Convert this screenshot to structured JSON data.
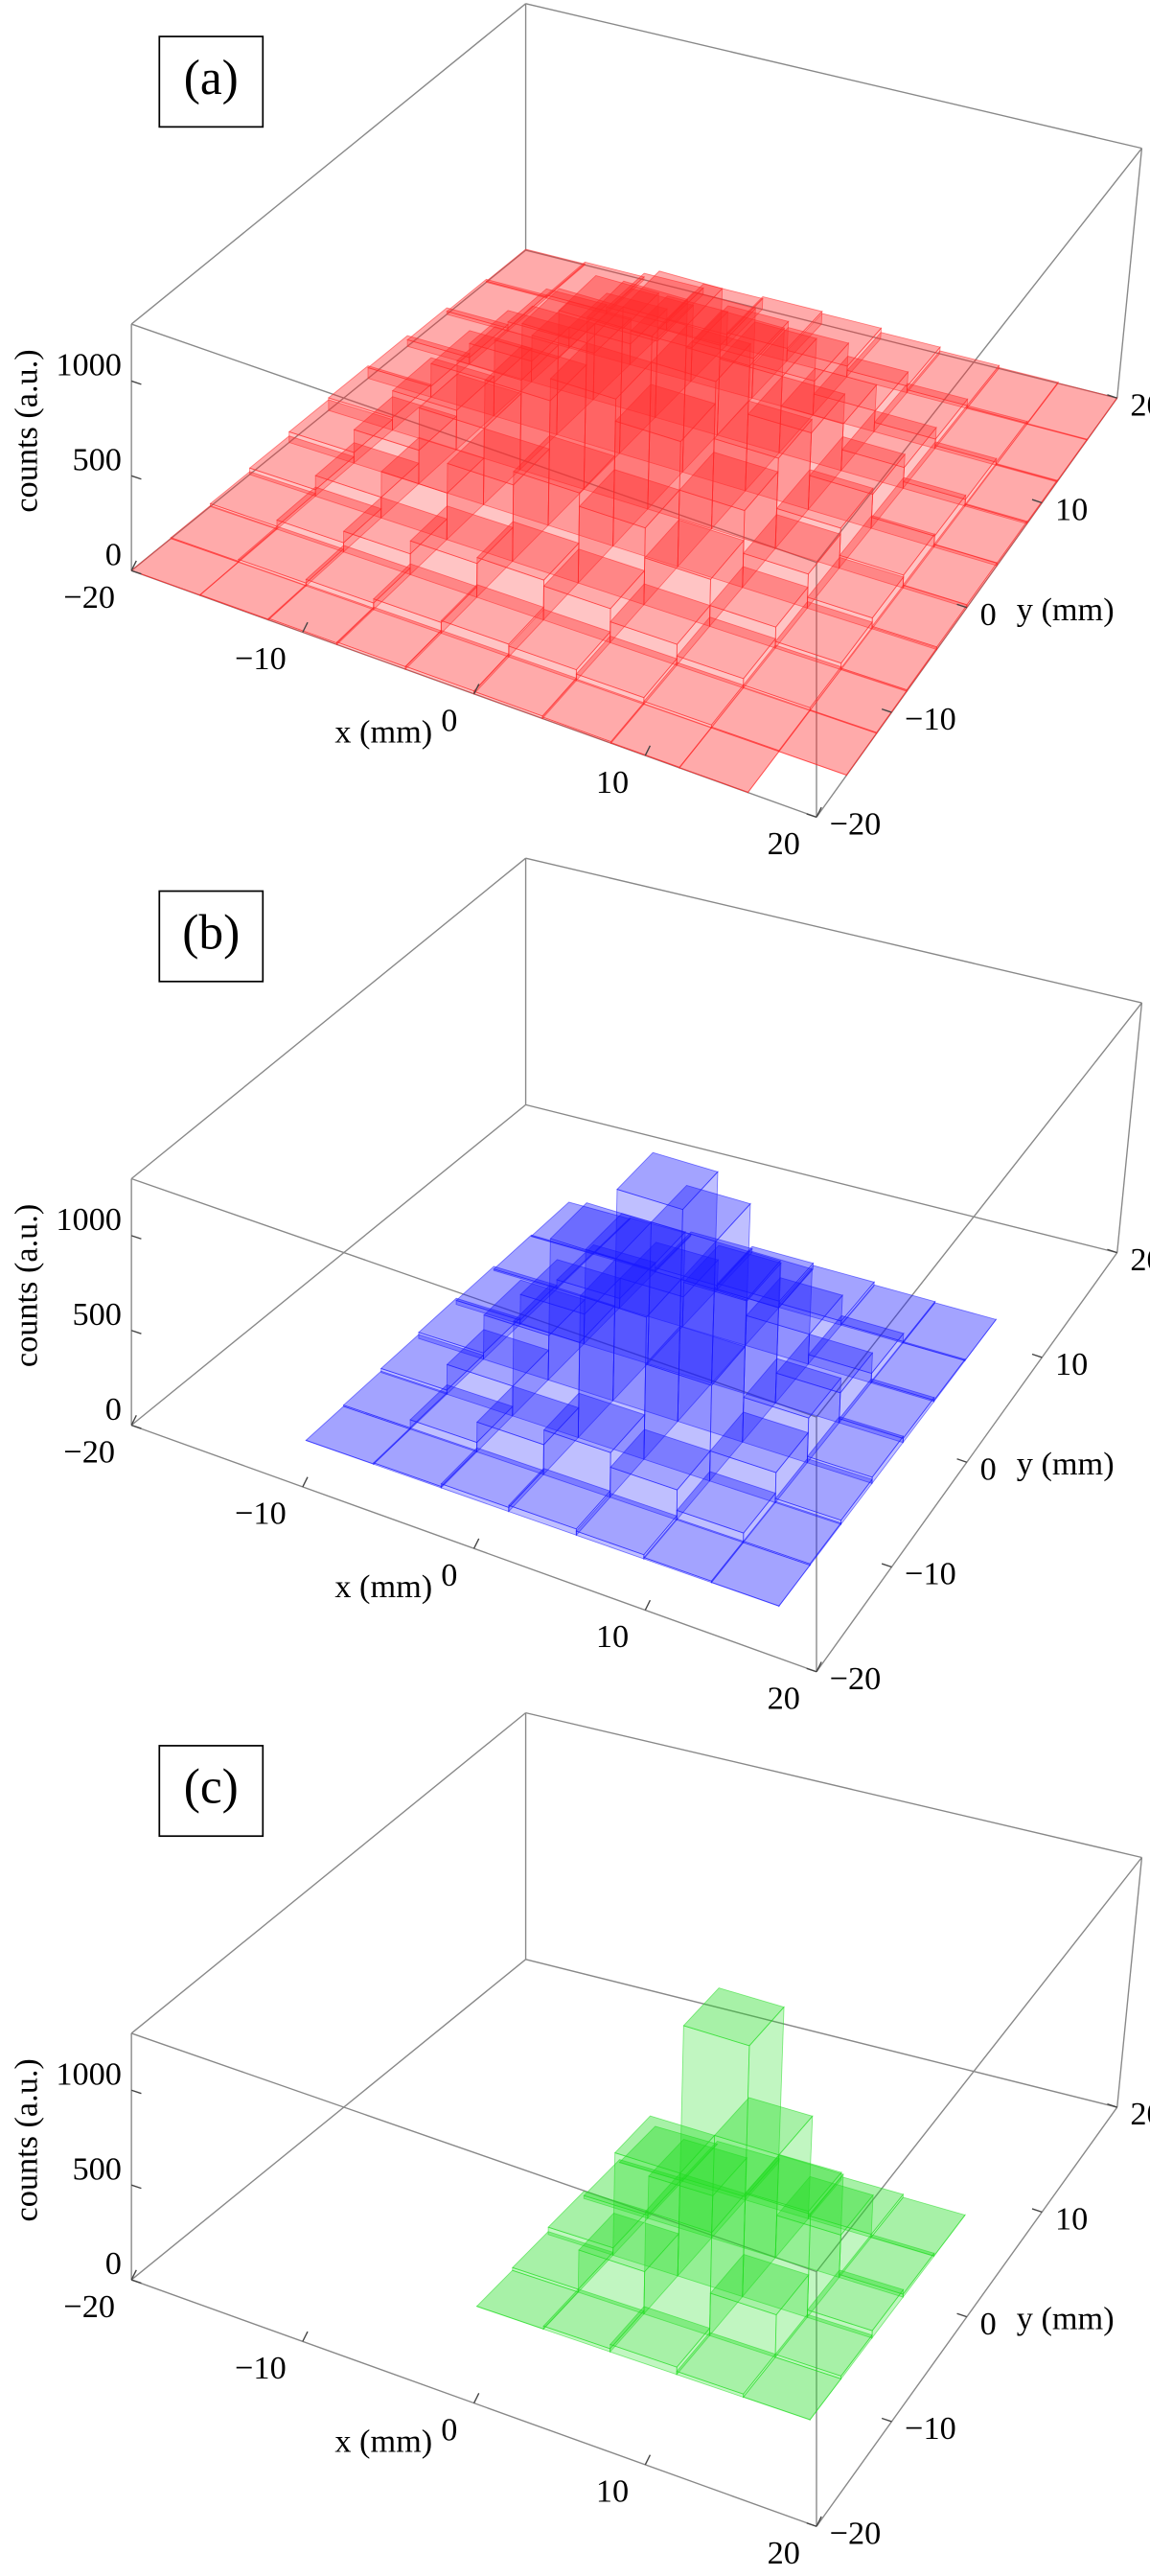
{
  "chart_data": [
    {
      "type": "bar3d",
      "label": "(a)",
      "xlabel": "x (mm)",
      "ylabel": "y (mm)",
      "zlabel": "counts (a.u.)",
      "color": "#ff2a2a",
      "xlim": [
        -20,
        20
      ],
      "ylim": [
        -20,
        20
      ],
      "zlim": [
        0,
        1300
      ],
      "xticks": [
        {
          "value": -20,
          "label": "−20"
        },
        {
          "value": -10,
          "label": "−10"
        },
        0,
        10,
        20
      ],
      "yticks": [
        {
          "value": -20,
          "label": "−20"
        },
        {
          "value": -10,
          "label": "−10"
        },
        0,
        10,
        20
      ],
      "zticks": [
        0,
        500,
        1000
      ],
      "xbins": [
        -20,
        -16,
        -12,
        -8,
        -4,
        0,
        4,
        8,
        12,
        16,
        20
      ],
      "ybins": [
        -20,
        -16,
        -12,
        -8,
        -4,
        0,
        4,
        8,
        12,
        16,
        20
      ],
      "counts": [
        [
          1,
          3,
          8,
          13,
          15,
          13,
          8,
          3,
          1,
          0
        ],
        [
          5,
          15,
          34,
          56,
          66,
          56,
          34,
          15,
          5,
          1
        ],
        [
          15,
          48,
          108,
          176,
          207,
          176,
          108,
          48,
          15,
          4
        ],
        [
          34,
          108,
          243,
          398,
          468,
          398,
          243,
          108,
          34,
          8
        ],
        [
          56,
          176,
          398,
          650,
          765,
          650,
          398,
          176,
          56,
          13
        ],
        [
          66,
          207,
          468,
          765,
          900,
          765,
          468,
          207,
          66,
          15
        ],
        [
          56,
          176,
          398,
          650,
          765,
          650,
          398,
          176,
          56,
          13
        ],
        [
          34,
          108,
          243,
          398,
          468,
          398,
          243,
          108,
          34,
          8
        ],
        [
          15,
          48,
          108,
          176,
          207,
          176,
          108,
          48,
          15,
          4
        ],
        [
          5,
          15,
          34,
          56,
          66,
          56,
          34,
          15,
          5,
          1
        ]
      ]
    },
    {
      "type": "bar3d",
      "label": "(b)",
      "xlabel": "x (mm)",
      "ylabel": "y (mm)",
      "zlabel": "counts (a.u.)",
      "color": "#1a1aff",
      "xlim": [
        -20,
        20
      ],
      "ylim": [
        -20,
        20
      ],
      "zlim": [
        0,
        1300
      ],
      "xticks": [
        {
          "value": -20,
          "label": "−20"
        },
        {
          "value": -10,
          "label": "−10"
        },
        0,
        10,
        20
      ],
      "yticks": [
        {
          "value": -20,
          "label": "−20"
        },
        {
          "value": -10,
          "label": "−10"
        },
        0,
        10,
        20
      ],
      "zticks": [
        0,
        500,
        1000
      ],
      "xbins": [
        -20,
        -16,
        -12,
        -8,
        -4,
        0,
        4,
        8,
        12,
        16,
        20
      ],
      "ybins": [
        -20,
        -16,
        -12,
        -8,
        -4,
        0,
        4,
        8,
        12,
        16,
        20
      ],
      "counts": [
        [
          0,
          0,
          0,
          0,
          0,
          0,
          0,
          0,
          0,
          0
        ],
        [
          0,
          0,
          1,
          7,
          21,
          32,
          21,
          7,
          1,
          0
        ],
        [
          0,
          0,
          7,
          49,
          155,
          231,
          155,
          49,
          7,
          0
        ],
        [
          0,
          0,
          21,
          155,
          494,
          737,
          494,
          155,
          21,
          0
        ],
        [
          0,
          0,
          32,
          231,
          737,
          1100,
          737,
          231,
          32,
          0
        ],
        [
          0,
          0,
          21,
          155,
          494,
          737,
          494,
          155,
          21,
          0
        ],
        [
          0,
          0,
          7,
          49,
          155,
          231,
          155,
          49,
          7,
          0
        ],
        [
          0,
          0,
          1,
          7,
          21,
          32,
          21,
          7,
          1,
          0
        ],
        [
          0,
          0,
          0,
          0,
          0,
          0,
          0,
          0,
          0,
          0
        ],
        [
          0,
          0,
          0,
          0,
          0,
          0,
          0,
          0,
          0,
          0
        ]
      ]
    },
    {
      "type": "bar3d",
      "label": "(c)",
      "xlabel": "x (mm)",
      "ylabel": "y (mm)",
      "zlabel": "counts (a.u.)",
      "color": "#22dd22",
      "xlim": [
        -20,
        20
      ],
      "ylim": [
        -20,
        20
      ],
      "zlim": [
        0,
        1300
      ],
      "xticks": [
        {
          "value": -20,
          "label": "−20"
        },
        {
          "value": -10,
          "label": "−10"
        },
        0,
        10,
        20
      ],
      "yticks": [
        {
          "value": -20,
          "label": "−20"
        },
        {
          "value": -10,
          "label": "−10"
        },
        0,
        10,
        20
      ],
      "zticks": [
        0,
        500,
        1000
      ],
      "xbins": [
        -20,
        -16,
        -12,
        -8,
        -4,
        0,
        4,
        8,
        12,
        16,
        20
      ],
      "ybins": [
        -20,
        -16,
        -12,
        -8,
        -4,
        0,
        4,
        8,
        12,
        16,
        20
      ],
      "counts": [
        [
          0,
          0,
          0,
          0,
          0,
          0,
          0,
          0,
          0,
          0
        ],
        [
          0,
          0,
          0,
          0,
          0,
          0,
          0,
          0,
          0,
          0
        ],
        [
          0,
          0,
          0,
          0,
          1,
          16,
          38,
          16,
          1,
          0
        ],
        [
          0,
          0,
          0,
          0,
          15,
          219,
          533,
          219,
          15,
          0
        ],
        [
          0,
          0,
          0,
          0,
          38,
          533,
          1300,
          533,
          38,
          0
        ],
        [
          0,
          0,
          0,
          0,
          15,
          219,
          533,
          219,
          15,
          0
        ],
        [
          0,
          0,
          0,
          0,
          1,
          16,
          38,
          16,
          1,
          0
        ],
        [
          0,
          0,
          0,
          0,
          0,
          0,
          0,
          0,
          0,
          0
        ],
        [
          0,
          0,
          0,
          0,
          0,
          0,
          0,
          0,
          0,
          0
        ],
        [
          0,
          0,
          0,
          0,
          0,
          0,
          0,
          0,
          0,
          0
        ]
      ]
    }
  ]
}
